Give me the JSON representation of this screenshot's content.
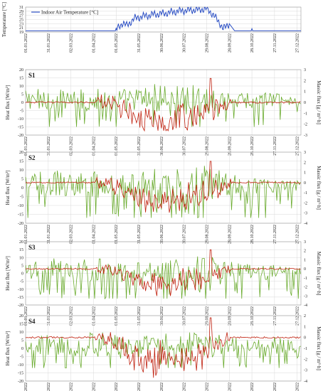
{
  "colors": {
    "indoor_temp": "#2b4fc4",
    "heat_flux": "#6aab2e",
    "massic_flux": "#c0210f",
    "grid": "#d9d9d9"
  },
  "chart_data": [
    {
      "type": "line",
      "panel": "indoor",
      "ylabel": "Temperature [°C]",
      "ylim": [
        19,
        31
      ],
      "yticks": [
        19,
        21,
        23,
        25,
        27,
        29,
        31
      ],
      "x_tick_labels": [
        "01.01.2022",
        "31.01.2022",
        "02.03.2022",
        "01.04.2022",
        "01.05.2022",
        "31.05.2022",
        "30.06.2022",
        "30.07.2022",
        "29.08.2022",
        "28.09.2022",
        "28.10.2022",
        "27.11.2022",
        "27.12.2022"
      ],
      "grid": true,
      "legend": "top-left",
      "series": [
        {
          "name": "Indoor Air Temperature [°C]",
          "x": [
            "01.01.2022",
            "30.04.2022",
            "10.05.2022",
            "15.05.2022",
            "25.05.2022",
            "05.06.2022",
            "20.06.2022",
            "05.07.2022",
            "20.07.2022",
            "05.08.2022",
            "20.08.2022",
            "29.08.2022",
            "05.09.2022",
            "15.09.2022",
            "20.09.2022",
            "28.09.2022",
            "05.10.2022",
            "31.12.2022"
          ],
          "values": [
            19.6,
            19.6,
            23.5,
            22,
            25.5,
            26.5,
            27.5,
            28,
            29,
            29.5,
            29.8,
            30.2,
            28,
            23.5,
            20.5,
            23,
            19.6,
            19.6
          ]
        }
      ]
    },
    {
      "type": "line",
      "panel": "S1",
      "title": "S1",
      "ylabel": "Heat flux [W/m²]",
      "y2label": "Massic flux [g / m²·h]",
      "ylim": [
        -20,
        20
      ],
      "yticks": [
        -20,
        -15,
        -10,
        -5,
        0,
        5,
        10,
        15,
        20
      ],
      "y2lim": [
        -3,
        3
      ],
      "y2ticks": [
        -3,
        -2,
        -1,
        0,
        1,
        2,
        3
      ],
      "grid": true,
      "series": [
        {
          "name": "Heat flux",
          "axis": "left",
          "x": [
            "01.01.2022",
            "01.02.2022",
            "01.03.2022",
            "01.04.2022",
            "01.05.2022",
            "01.06.2022",
            "01.07.2022",
            "01.08.2022",
            "01.09.2022",
            "01.10.2022",
            "01.11.2022",
            "01.12.2022",
            "31.12.2022"
          ],
          "values": [
            8,
            11,
            7,
            12,
            9,
            10,
            14,
            11,
            13,
            9,
            7,
            6,
            3
          ],
          "min": -15,
          "max": 16
        },
        {
          "name": "Massic flux",
          "axis": "right",
          "x": [
            "01.01.2022",
            "01.02.2022",
            "01.03.2022",
            "01.04.2022",
            "01.05.2022",
            "01.06.2022",
            "01.07.2022",
            "01.08.2022",
            "01.09.2022",
            "01.10.2022",
            "01.11.2022",
            "01.12.2022",
            "31.12.2022"
          ],
          "values": [
            0,
            0,
            0,
            0,
            -0.5,
            -1.5,
            -1.8,
            -1.5,
            -1.2,
            0,
            0,
            0,
            0
          ],
          "min": -2.6,
          "max": 2.2
        }
      ]
    },
    {
      "type": "line",
      "panel": "S2",
      "title": "S2",
      "ylabel": "Heat flux [W/m²]",
      "y2label": "Massic flux [g / m²·h]",
      "ylim": [
        -20,
        20
      ],
      "yticks": [
        -20,
        -15,
        -10,
        -5,
        0,
        5,
        10,
        15,
        20
      ],
      "y2lim": [
        -4,
        3
      ],
      "y2ticks": [
        -4,
        -3,
        -2,
        -1,
        0,
        1,
        2,
        3
      ],
      "grid": true,
      "series": [
        {
          "name": "Heat flux",
          "axis": "left",
          "x": [
            "01.01.2022",
            "01.02.2022",
            "01.03.2022",
            "01.04.2022",
            "01.05.2022",
            "01.06.2022",
            "01.07.2022",
            "01.08.2022",
            "01.09.2022",
            "01.10.2022",
            "01.11.2022",
            "01.12.2022",
            "31.12.2022"
          ],
          "values": [
            7,
            12,
            9,
            11,
            8,
            10,
            13,
            12,
            14,
            8,
            7,
            6,
            4
          ],
          "min": -17,
          "max": 15
        },
        {
          "name": "Massic flux",
          "axis": "right",
          "x": [
            "01.01.2022",
            "01.02.2022",
            "01.03.2022",
            "01.04.2022",
            "01.05.2022",
            "01.06.2022",
            "01.07.2022",
            "01.08.2022",
            "01.09.2022",
            "01.10.2022",
            "01.11.2022",
            "01.12.2022",
            "31.12.2022"
          ],
          "values": [
            0,
            0,
            0,
            0,
            -0.6,
            -1.6,
            -2.0,
            -1.7,
            -1.3,
            0,
            0,
            0,
            0
          ],
          "min": -3.2,
          "max": 2.1
        }
      ]
    },
    {
      "type": "line",
      "panel": "S3",
      "title": "S3",
      "ylabel": "Heat flux [W/m²]",
      "y2label": "Massic flux [g / m²·h]",
      "ylim": [
        -20,
        20
      ],
      "yticks": [
        -20,
        -15,
        -10,
        -5,
        0,
        5,
        10,
        15,
        20
      ],
      "y2lim": [
        -4,
        3
      ],
      "y2ticks": [
        -4,
        -3,
        -2,
        -1,
        0,
        1,
        2,
        3
      ],
      "grid": true,
      "series": [
        {
          "name": "Heat flux",
          "axis": "left",
          "x": [
            "01.01.2022",
            "01.02.2022",
            "01.03.2022",
            "01.04.2022",
            "01.05.2022",
            "01.06.2022",
            "01.07.2022",
            "01.08.2022",
            "01.09.2022",
            "01.10.2022",
            "01.11.2022",
            "01.12.2022",
            "31.12.2022"
          ],
          "values": [
            6,
            11,
            9,
            12,
            8,
            9,
            12,
            11,
            13,
            8,
            7,
            6,
            4
          ],
          "min": -16,
          "max": 15
        },
        {
          "name": "Massic flux",
          "axis": "right",
          "x": [
            "01.01.2022",
            "01.02.2022",
            "01.03.2022",
            "01.04.2022",
            "01.05.2022",
            "01.06.2022",
            "01.07.2022",
            "01.08.2022",
            "01.09.2022",
            "01.10.2022",
            "01.11.2022",
            "01.12.2022",
            "31.12.2022"
          ],
          "values": [
            0,
            0,
            0,
            0,
            -0.5,
            -1.4,
            -1.9,
            -1.6,
            -1.2,
            0,
            0,
            0,
            0
          ],
          "min": -3.0,
          "max": 2.1
        }
      ]
    },
    {
      "type": "line",
      "panel": "S4",
      "title": "S4",
      "ylabel": "Heat flux [W/m²]",
      "y2label": "Massic flux [g / m²·h]",
      "ylim": [
        -20,
        20
      ],
      "yticks": [
        -20,
        -15,
        -10,
        -5,
        0,
        5,
        10,
        15,
        20
      ],
      "y2lim": [
        -4,
        2
      ],
      "y2ticks": [
        -4,
        -3,
        -2,
        -1,
        0,
        1,
        2
      ],
      "grid": true,
      "series": [
        {
          "name": "Heat flux",
          "axis": "left",
          "x": [
            "01.01.2022",
            "01.02.2022",
            "01.03.2022",
            "01.04.2022",
            "01.05.2022",
            "01.06.2022",
            "01.07.2022",
            "01.08.2022",
            "01.09.2022",
            "01.10.2022",
            "01.11.2022",
            "01.12.2022",
            "31.12.2022"
          ],
          "values": [
            5,
            10,
            8,
            13,
            9,
            8,
            10,
            11,
            12,
            7,
            6,
            9,
            5
          ],
          "min": -12,
          "max": 16
        },
        {
          "name": "Massic flux",
          "axis": "right",
          "x": [
            "01.01.2022",
            "01.02.2022",
            "01.03.2022",
            "01.04.2022",
            "01.05.2022",
            "01.06.2022",
            "01.07.2022",
            "01.08.2022",
            "01.09.2022",
            "01.10.2022",
            "01.11.2022",
            "01.12.2022",
            "31.12.2022"
          ],
          "values": [
            0,
            0,
            0,
            0,
            -0.8,
            -2.0,
            -2.5,
            -2.2,
            -1.5,
            0,
            0,
            0,
            0
          ],
          "min": -3.7,
          "max": 1.8
        }
      ]
    }
  ]
}
